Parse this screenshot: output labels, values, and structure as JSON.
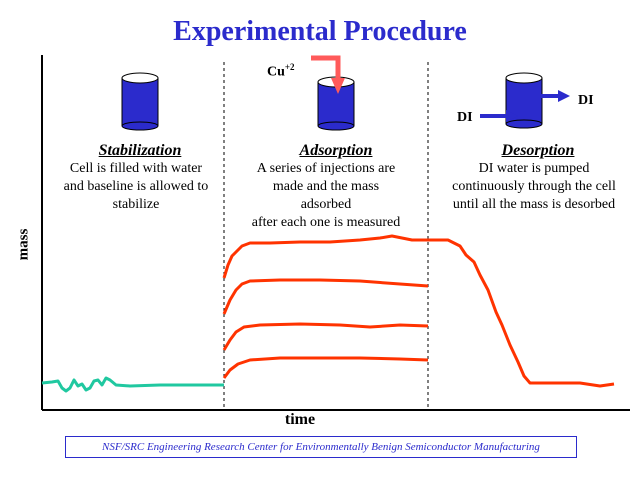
{
  "title": "Experimental Procedure",
  "stages": [
    {
      "name": "Stabilization",
      "description": [
        "Cell is filled with water",
        "and baseline is allowed to",
        "stabilize"
      ]
    },
    {
      "name": "Adsorption",
      "description": [
        "A series of injections are",
        "made and the mass",
        "adsorbed",
        "after each one is measured"
      ]
    },
    {
      "name": "Desorption",
      "description": [
        "DI water is pumped",
        "continuously through the cell",
        "until all the mass is desorbed"
      ]
    }
  ],
  "labels": {
    "ion": "Cu",
    "ion_charge": "+2",
    "di_in": "DI",
    "di_out": "DI"
  },
  "axes": {
    "x": "time",
    "y": "mass"
  },
  "footer": "NSF/SRC Engineering Research Center for Environmentally Benign Semiconductor Manufacturing",
  "colors": {
    "title": "#2b2bcc",
    "cell": "#2b2bcc",
    "baseline_trace": "#20c8a0",
    "trace": "#ff3300",
    "arrow": "#ff5a5a"
  }
}
